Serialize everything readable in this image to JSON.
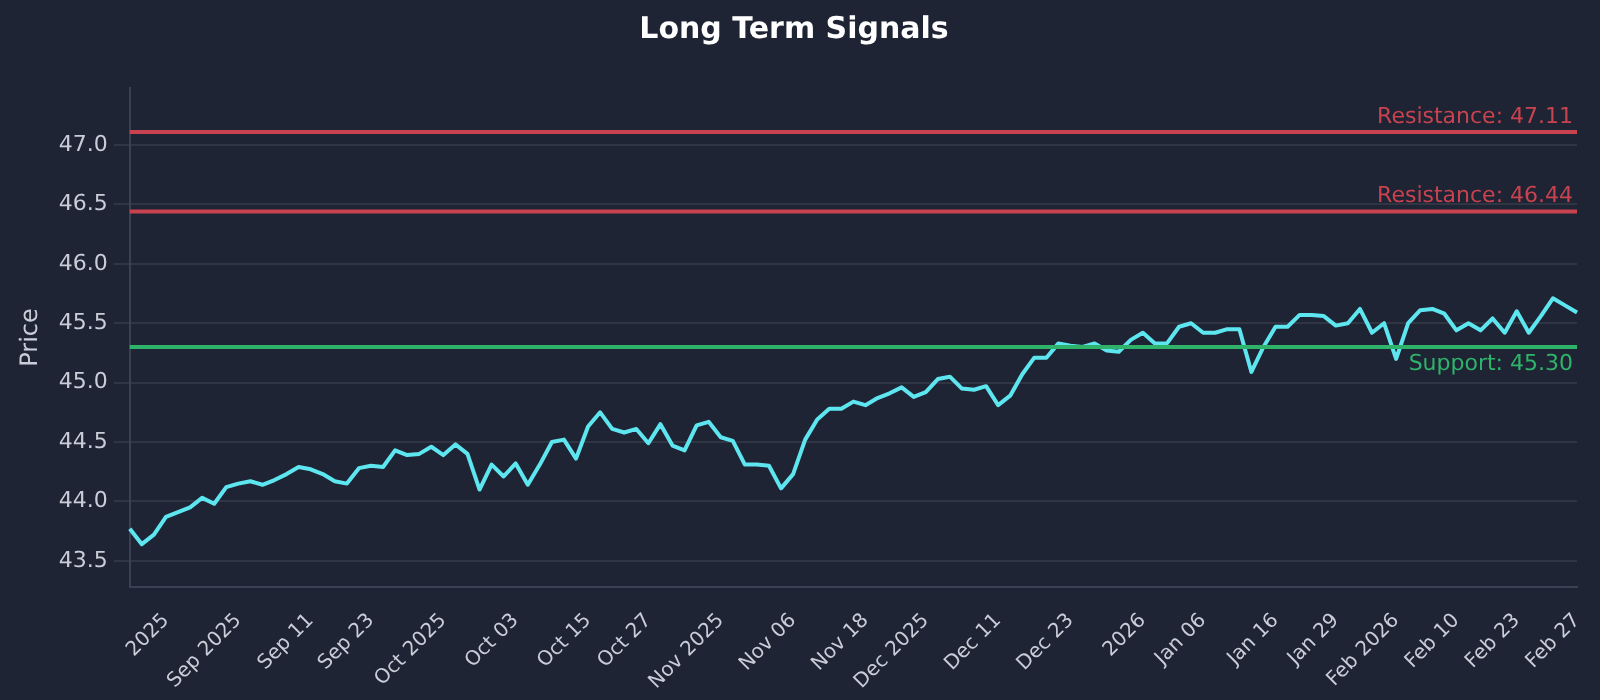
{
  "chart_data": {
    "type": "line",
    "title": "Long Term Signals",
    "ylabel": "Price",
    "categories": [
      null,
      null,
      null,
      "2025",
      null,
      null,
      null,
      null,
      null,
      "Sep 2025",
      null,
      null,
      null,
      null,
      null,
      "Sep 11",
      null,
      null,
      null,
      null,
      "Sep 23",
      null,
      null,
      null,
      null,
      null,
      "Oct 2025",
      null,
      null,
      null,
      null,
      null,
      "Oct 03",
      null,
      null,
      null,
      null,
      null,
      "Oct 15",
      null,
      null,
      null,
      null,
      "Oct 27",
      null,
      null,
      null,
      null,
      null,
      "Nov 2025",
      null,
      null,
      null,
      null,
      null,
      "Nov 06",
      null,
      null,
      null,
      null,
      null,
      "Nov 18",
      null,
      null,
      null,
      null,
      "Dec 2025",
      null,
      null,
      null,
      null,
      null,
      "Dec 11",
      null,
      null,
      null,
      null,
      null,
      "Dec 23",
      null,
      null,
      null,
      null,
      null,
      "2026",
      null,
      null,
      null,
      null,
      "Jan 06",
      null,
      null,
      null,
      null,
      null,
      "Jan 16",
      null,
      null,
      null,
      null,
      "Jan 29",
      null,
      null,
      null,
      null,
      "Feb 2026",
      null,
      null,
      null,
      null,
      "Feb 10",
      null,
      null,
      null,
      null,
      "Feb 23",
      null,
      null,
      null,
      null,
      "Feb 27"
    ],
    "series": [
      {
        "color": "#5ee6f0",
        "values": [
          43.77,
          43.64,
          43.72,
          43.87,
          43.91,
          43.95,
          44.03,
          43.98,
          44.12,
          44.15,
          44.17,
          44.14,
          44.18,
          44.23,
          44.29,
          44.27,
          44.23,
          44.17,
          44.15,
          44.28,
          44.3,
          44.29,
          44.43,
          44.39,
          44.4,
          44.46,
          44.39,
          44.48,
          44.4,
          44.1,
          44.31,
          44.21,
          44.32,
          44.14,
          44.31,
          44.5,
          44.52,
          44.36,
          44.63,
          44.75,
          44.61,
          44.58,
          44.61,
          44.49,
          44.65,
          44.47,
          44.43,
          44.64,
          44.67,
          44.54,
          44.51,
          44.31,
          44.31,
          44.3,
          44.11,
          44.23,
          44.52,
          44.69,
          44.78,
          44.78,
          44.84,
          44.81,
          44.87,
          44.91,
          44.96,
          44.88,
          44.92,
          45.03,
          45.05,
          44.95,
          44.94,
          44.97,
          44.81,
          44.89,
          45.07,
          45.21,
          45.21,
          45.33,
          45.31,
          45.3,
          45.33,
          45.27,
          45.26,
          45.36,
          45.42,
          45.33,
          45.33,
          45.47,
          45.5,
          45.42,
          45.42,
          45.45,
          45.45,
          45.09,
          45.3,
          45.47,
          45.47,
          45.57,
          45.57,
          45.56,
          45.48,
          45.5,
          45.62,
          45.42,
          45.5,
          45.2,
          45.5,
          45.61,
          45.62,
          45.58,
          45.44,
          45.5,
          45.44,
          45.54,
          45.42,
          45.6,
          45.42,
          45.56,
          45.71,
          45.65,
          45.59
        ]
      }
    ],
    "ylim": [
      43.28,
      47.48
    ],
    "yticks": [
      43.5,
      {
        "value": 44,
        "label": "44.0"
      },
      44.5,
      {
        "value": 45,
        "label": "45.0"
      },
      45.5,
      {
        "value": 46,
        "label": "46.0"
      },
      46.5,
      {
        "value": 47,
        "label": "47.0"
      }
    ],
    "grid": "y",
    "legend": false,
    "marker": "none",
    "line_style": "solid",
    "ref_lines": [
      {
        "axis": "y",
        "value": 47.11,
        "label": "Resistance: 47.11",
        "color": "#c8434f"
      },
      {
        "axis": "y",
        "value": 46.44,
        "label": "Resistance: 46.44",
        "color": "#c8434f"
      },
      {
        "axis": "y",
        "value": 45.3,
        "label": "Support: 45.30",
        "color": "#2fb36b"
      }
    ]
  }
}
